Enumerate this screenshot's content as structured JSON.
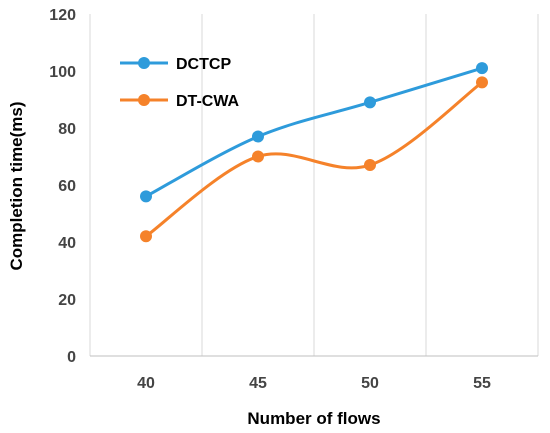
{
  "chart_data": {
    "type": "line",
    "xlabel": "Number of flows",
    "ylabel": "Completion time(ms)",
    "categories": [
      "40",
      "45",
      "50",
      "55"
    ],
    "ylim": [
      0,
      120
    ],
    "yticks": [
      0,
      20,
      40,
      60,
      80,
      100,
      120
    ],
    "grid": "vertical",
    "legend_position": "top-left",
    "smooth": true,
    "series": [
      {
        "name": "DCTCP",
        "values": [
          56,
          77,
          89,
          101
        ],
        "color": "#2e9bdb"
      },
      {
        "name": "DT-CWA",
        "values": [
          42,
          70,
          67,
          96
        ],
        "color": "#f5822a"
      }
    ]
  }
}
